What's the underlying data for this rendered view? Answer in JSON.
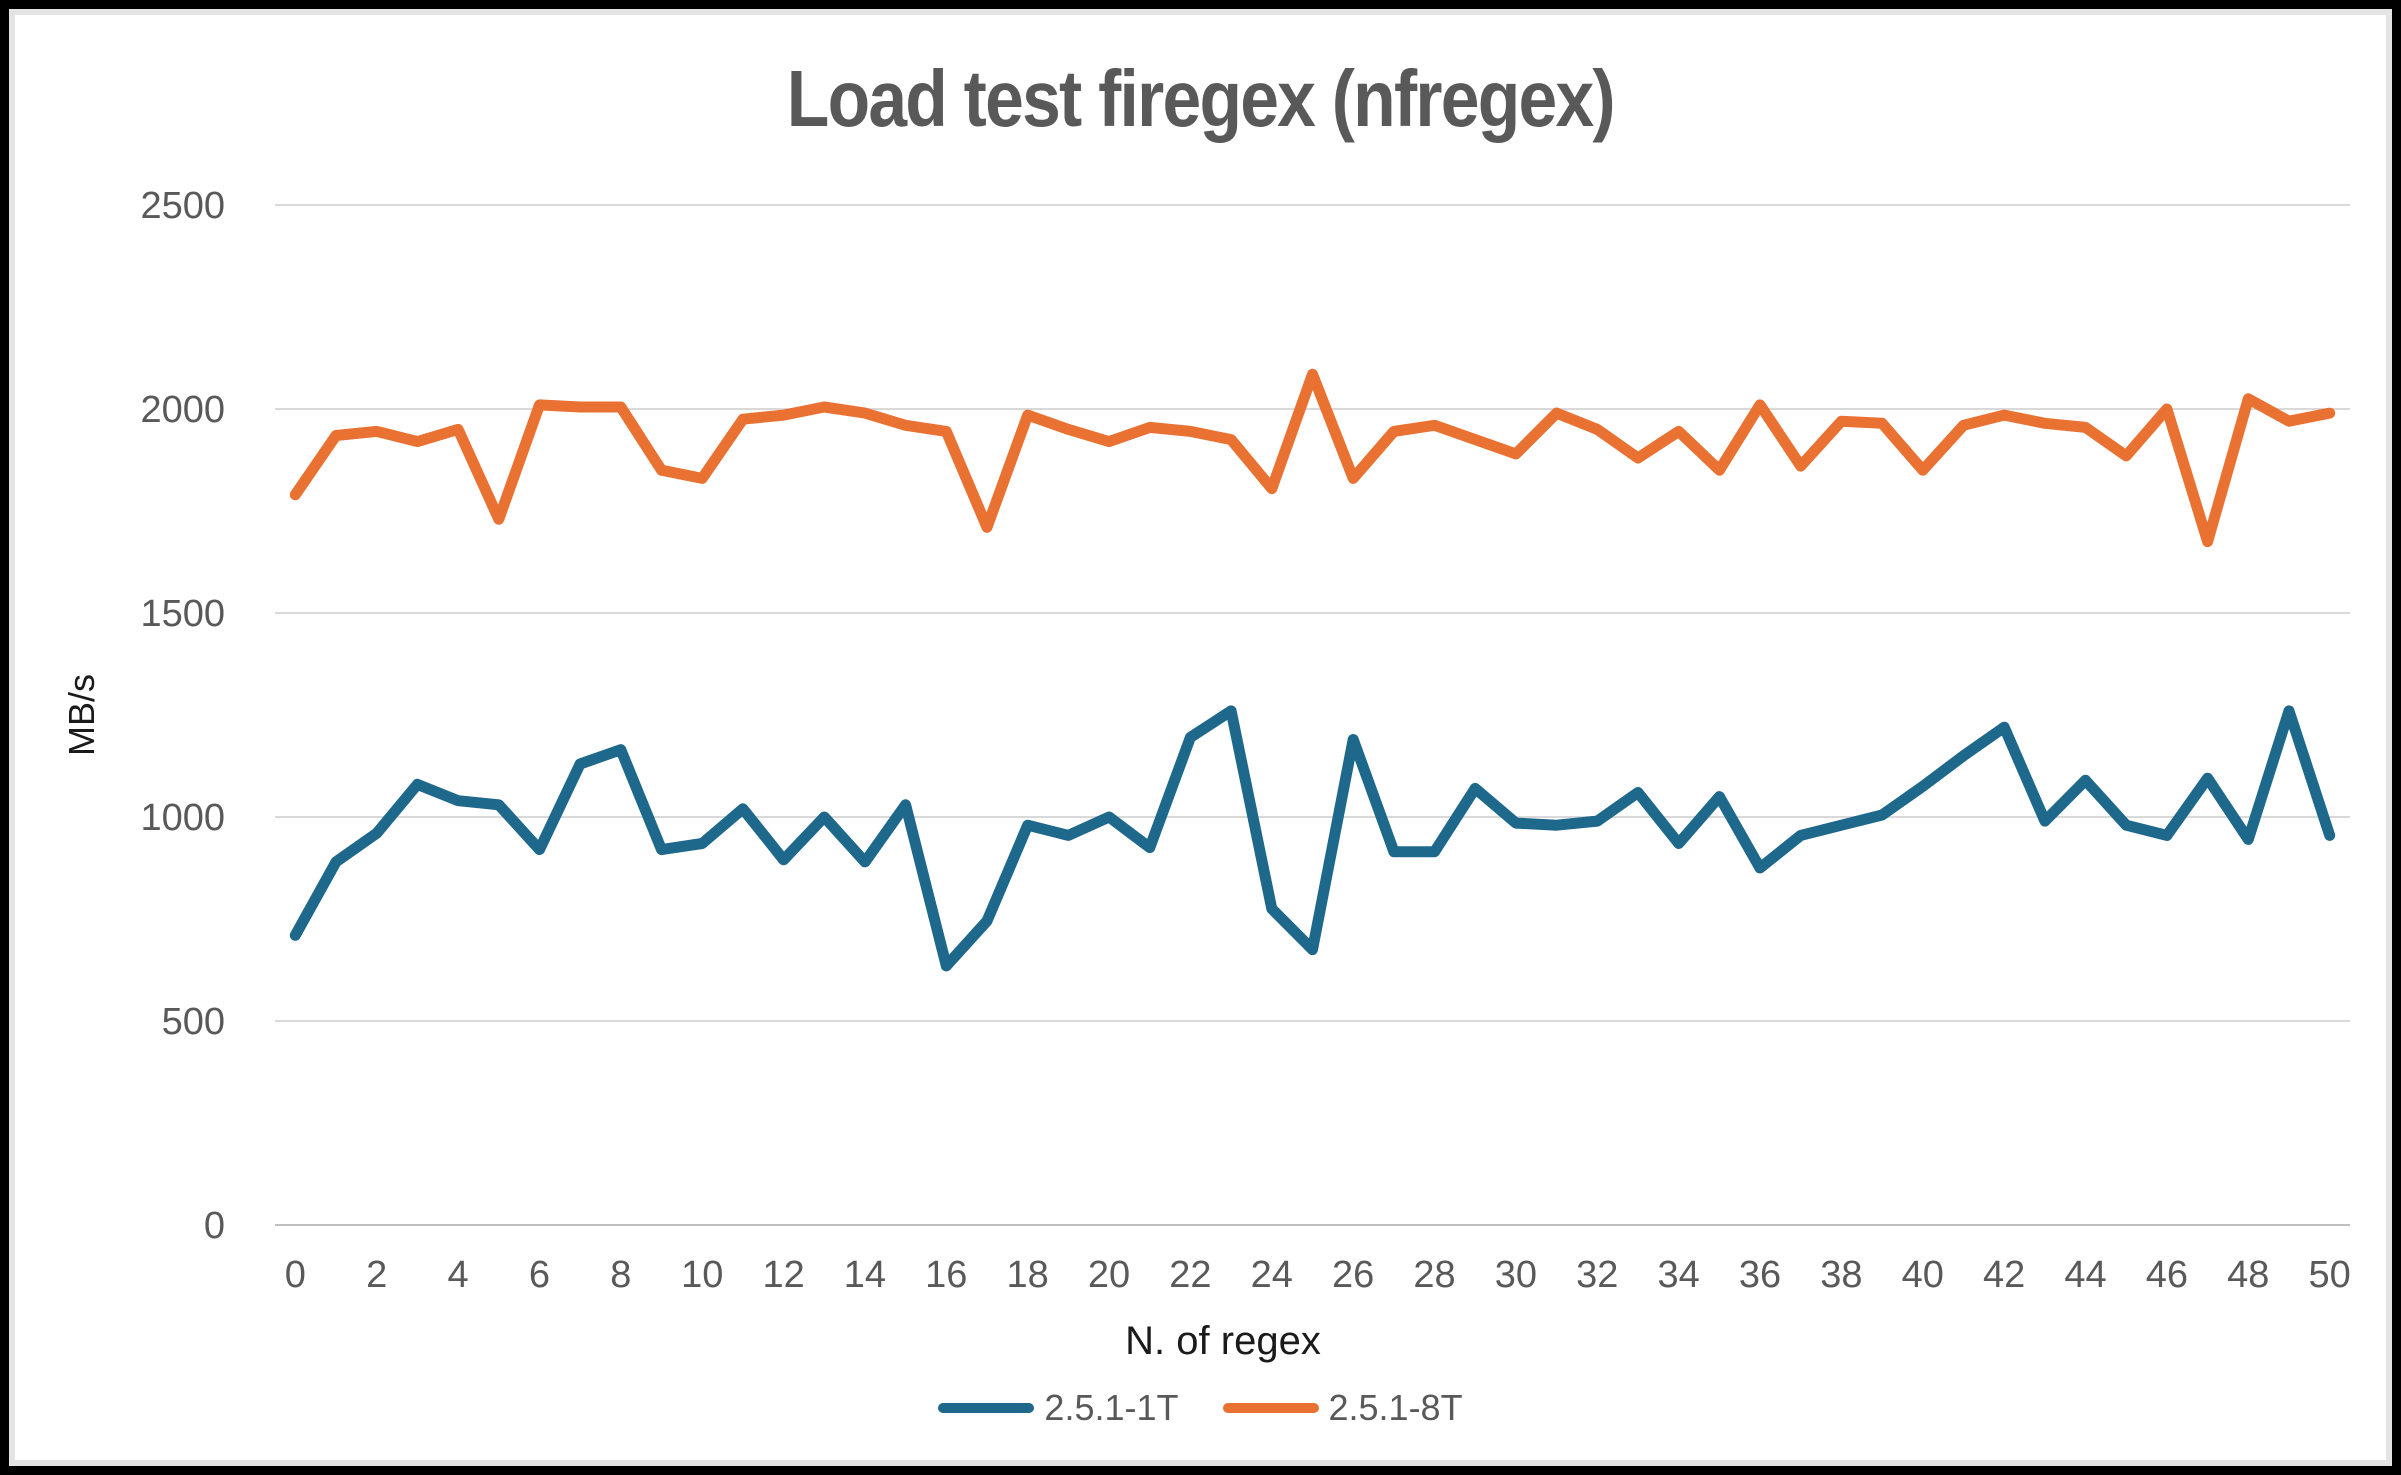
{
  "title": "Load test firegex (nfregex)",
  "axes": {
    "y_title": "MB/s",
    "x_title": "N. of regex"
  },
  "colors": {
    "series1": "#1E688C",
    "series2": "#E97132",
    "gridline": "#D9D9D9",
    "axis_line": "#BFBFBF",
    "tick_label": "#595959",
    "title_text": "#595959"
  },
  "chart_data": {
    "type": "line",
    "title": "Load test firegex (nfregex)",
    "xlabel": "N. of regex",
    "ylabel": "MB/s",
    "x": [
      0,
      1,
      2,
      3,
      4,
      5,
      6,
      7,
      8,
      9,
      10,
      11,
      12,
      13,
      14,
      15,
      16,
      17,
      18,
      19,
      20,
      21,
      22,
      23,
      24,
      25,
      26,
      27,
      28,
      29,
      30,
      31,
      32,
      33,
      34,
      35,
      36,
      37,
      38,
      39,
      40,
      41,
      42,
      43,
      44,
      45,
      46,
      47,
      48,
      49,
      50
    ],
    "x_tick_labels": [
      "0",
      "2",
      "4",
      "6",
      "8",
      "10",
      "12",
      "14",
      "16",
      "18",
      "20",
      "22",
      "24",
      "26",
      "28",
      "30",
      "32",
      "34",
      "36",
      "38",
      "40",
      "42",
      "44",
      "46",
      "48",
      "50"
    ],
    "x_tick_values": [
      0,
      2,
      4,
      6,
      8,
      10,
      12,
      14,
      16,
      18,
      20,
      22,
      24,
      26,
      28,
      30,
      32,
      34,
      36,
      38,
      40,
      42,
      44,
      46,
      48,
      50
    ],
    "y_ticks": [
      0,
      500,
      1000,
      1500,
      2000,
      2500
    ],
    "ylim": [
      0,
      2500
    ],
    "grid": true,
    "legend_position": "bottom",
    "series": [
      {
        "name": "2.5.1-1T",
        "color": "#1E688C",
        "values": [
          710,
          890,
          960,
          1080,
          1040,
          1030,
          920,
          1130,
          1165,
          920,
          935,
          1020,
          895,
          1000,
          890,
          1030,
          635,
          745,
          980,
          955,
          1000,
          925,
          1195,
          1260,
          775,
          675,
          1190,
          915,
          915,
          1070,
          985,
          980,
          990,
          1060,
          935,
          1050,
          875,
          955,
          980,
          1005,
          1075,
          1150,
          1220,
          990,
          1090,
          980,
          955,
          1095,
          945,
          1260,
          955
        ]
      },
      {
        "name": "2.5.1-8T",
        "color": "#E97132",
        "values": [
          1790,
          1935,
          1945,
          1920,
          1950,
          1730,
          2010,
          2005,
          2005,
          1850,
          1830,
          1975,
          1985,
          2005,
          1990,
          1960,
          1945,
          1710,
          1985,
          1950,
          1920,
          1955,
          1945,
          1925,
          1805,
          2085,
          1830,
          1945,
          1960,
          1925,
          1890,
          1990,
          1950,
          1880,
          1945,
          1850,
          2010,
          1860,
          1970,
          1965,
          1850,
          1960,
          1985,
          1965,
          1955,
          1885,
          2000,
          1675,
          2025,
          1970,
          1990
        ]
      }
    ]
  }
}
